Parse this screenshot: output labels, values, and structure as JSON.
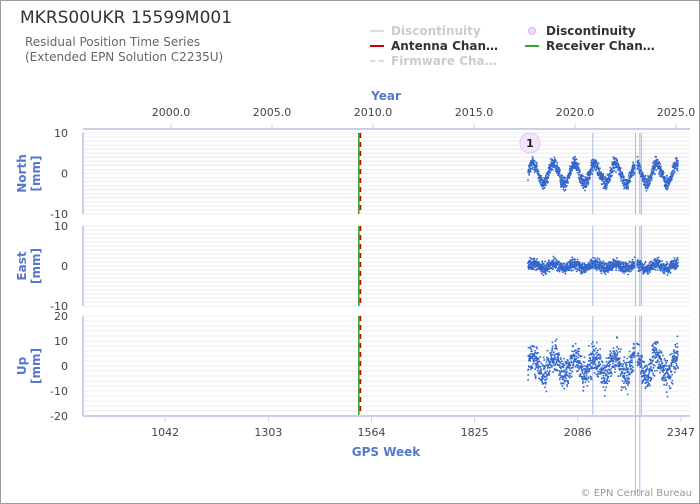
{
  "header": {
    "title": "MKRS00UKR 15599M001",
    "subtitle_line1": "Residual Position Time Series",
    "subtitle_line2": "(Extended EPN Solution C2235U)"
  },
  "legend": [
    {
      "label": "Discontinuity",
      "color": "#dddddd",
      "style": "line",
      "muted": true
    },
    {
      "label": "Antenna Chan…",
      "color": "#cc0000",
      "style": "line",
      "muted": false
    },
    {
      "label": "Firmware Cha…",
      "color": "#dddddd",
      "style": "dashed",
      "muted": true
    },
    {
      "label": "Discontinuity",
      "color": "#d8b4f0",
      "style": "marker",
      "muted": false
    },
    {
      "label": "Receiver Chan…",
      "color": "#33aa33",
      "style": "line",
      "muted": false
    }
  ],
  "credit": "© EPN Central Bureau",
  "chart_data": {
    "type": "scatter",
    "top_axis": {
      "label": "Year",
      "ticks": [
        "2000.0",
        "2005.0",
        "2010.0",
        "2015.0",
        "2020.0",
        "2025.0"
      ]
    },
    "bottom_axis": {
      "label": "GPS Week",
      "ticks": [
        "1042",
        "1303",
        "1564",
        "1825",
        "2086",
        "2347"
      ],
      "xlim": [
        834,
        2370
      ]
    },
    "panels": [
      {
        "name": "North",
        "ylabel": "North\n[mm]",
        "ylim": [
          -10,
          10
        ],
        "yticks": [
          "10",
          "0",
          "-10"
        ],
        "amplitude": 2.5,
        "noise": 1.2,
        "offset": 0
      },
      {
        "name": "East",
        "ylabel": "East\n[mm]",
        "ylim": [
          -10,
          10
        ],
        "yticks": [
          "10",
          "0",
          "-10"
        ],
        "amplitude": 0.6,
        "noise": 1.0,
        "offset": 0
      },
      {
        "name": "Up",
        "ylabel": "Up\n[mm]",
        "ylim": [
          -20,
          20
        ],
        "yticks": [
          "20",
          "10",
          "0",
          "-10",
          "-20"
        ],
        "amplitude": 4,
        "noise": 4.5,
        "offset": 0
      }
    ],
    "series_x_range": [
      1960,
      2340
    ],
    "series_gaps": [
      [
        2230,
        2236
      ]
    ],
    "antenna_change_week": 1534,
    "receiver_change_week": 1534,
    "discontinuity_lines_weeks": [
      2124,
      2232,
      2243,
      2247
    ],
    "discontinuity_markers": [
      {
        "week": 1965,
        "label": "1"
      }
    ],
    "point_color": "#3366cc"
  }
}
